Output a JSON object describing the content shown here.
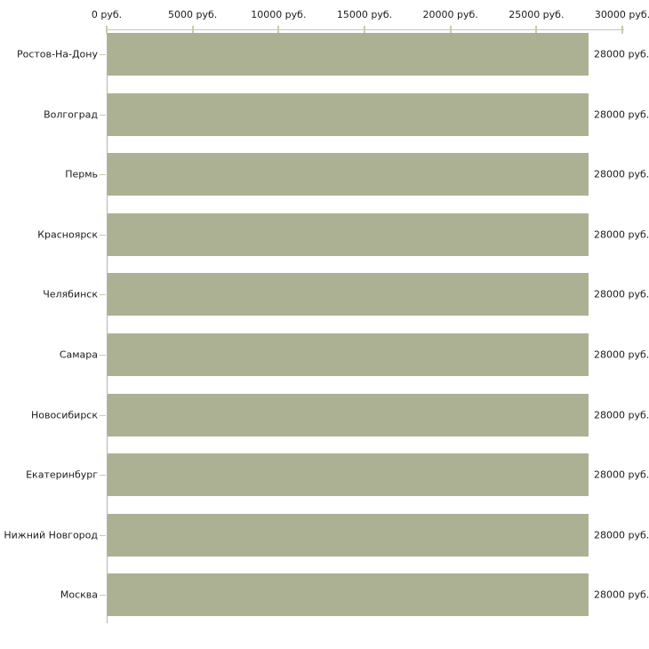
{
  "chart_data": {
    "type": "bar",
    "orientation": "horizontal",
    "title": "",
    "xlabel": "",
    "ylabel": "",
    "categories": [
      "Ростов-На-Дону",
      "Волгоград",
      "Пермь",
      "Красноярск",
      "Челябинск",
      "Самара",
      "Новосибирск",
      "Екатеринбург",
      "Нижний Новгород",
      "Москва"
    ],
    "values": [
      28000,
      28000,
      28000,
      28000,
      28000,
      28000,
      28000,
      28000,
      28000,
      28000
    ],
    "value_labels": [
      "28000 руб.",
      "28000 руб.",
      "28000 руб.",
      "28000 руб.",
      "28000 руб.",
      "28000 руб.",
      "28000 руб.",
      "28000 руб.",
      "28000 руб.",
      "28000 руб."
    ],
    "xlim": [
      0,
      30000
    ],
    "x_ticks": [
      0,
      5000,
      10000,
      15000,
      20000,
      25000,
      30000
    ],
    "x_tick_labels": [
      "0 руб.",
      "5000 руб.",
      "10000 руб.",
      "15000 руб.",
      "20000 руб.",
      "25000 руб.",
      "30000 руб."
    ],
    "unit_suffix": " руб.",
    "grid": false,
    "legend": false,
    "axis_position": "top",
    "colors": {
      "bar": "#acb194",
      "x_axis_line": "#c3c3c3",
      "y_axis_line": "#b3b3b3",
      "tick": "#cbcaa9",
      "text": "#1c1c1c",
      "background": "#ffffff"
    }
  }
}
